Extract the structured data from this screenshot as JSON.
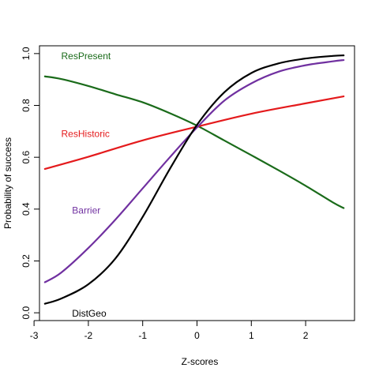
{
  "chart_data": {
    "type": "line",
    "xlabel": "Z-scores",
    "ylabel": "Probability of success",
    "xlim": [
      -2.9,
      2.9
    ],
    "ylim": [
      -0.03,
      1.03
    ],
    "x_ticks": [
      -3,
      -2,
      -1,
      0,
      1,
      2
    ],
    "x_tick_labels": [
      "-3",
      "-2",
      "-1",
      "0",
      "1",
      "2"
    ],
    "y_ticks": [
      0.0,
      0.2,
      0.4,
      0.6,
      0.8,
      1.0
    ],
    "y_tick_labels": [
      "0.0",
      "0.2",
      "0.4",
      "0.6",
      "0.8",
      "1.0"
    ],
    "grid": false,
    "legend": "none",
    "series": [
      {
        "name": "ResPresent",
        "color": "#1a6b1a",
        "x": [
          -2.8,
          -2.5,
          -2.0,
          -1.5,
          -1.0,
          -0.5,
          0.0,
          0.5,
          1.0,
          1.5,
          2.0,
          2.5,
          2.7
        ],
        "values": [
          0.912,
          0.902,
          0.875,
          0.843,
          0.812,
          0.77,
          0.722,
          0.665,
          0.608,
          0.55,
          0.49,
          0.426,
          0.404
        ]
      },
      {
        "name": "ResHistoric",
        "color": "#e41a1c",
        "x": [
          -2.8,
          -2.0,
          -1.0,
          0.0,
          1.0,
          2.0,
          2.7
        ],
        "values": [
          0.555,
          0.602,
          0.665,
          0.718,
          0.768,
          0.808,
          0.835
        ]
      },
      {
        "name": "Barrier",
        "color": "#7030a0",
        "x": [
          -2.8,
          -2.5,
          -2.0,
          -1.5,
          -1.0,
          -0.5,
          0.0,
          0.5,
          1.0,
          1.5,
          2.0,
          2.5,
          2.7
        ],
        "values": [
          0.118,
          0.155,
          0.25,
          0.36,
          0.48,
          0.6,
          0.715,
          0.818,
          0.885,
          0.93,
          0.955,
          0.97,
          0.975
        ]
      },
      {
        "name": "DistGeo",
        "color": "#000000",
        "x": [
          -2.8,
          -2.5,
          -2.0,
          -1.5,
          -1.0,
          -0.5,
          0.0,
          0.5,
          1.0,
          1.5,
          2.0,
          2.5,
          2.7
        ],
        "values": [
          0.035,
          0.055,
          0.11,
          0.21,
          0.37,
          0.555,
          0.725,
          0.85,
          0.925,
          0.962,
          0.981,
          0.991,
          0.993
        ]
      }
    ],
    "annotations": [
      {
        "text": "ResPresent",
        "series": "ResPresent",
        "x": -2.5,
        "y": 0.99
      },
      {
        "text": "ResHistoric",
        "series": "ResHistoric",
        "x": -2.5,
        "y": 0.69
      },
      {
        "text": "Barrier",
        "series": "Barrier",
        "x": -2.3,
        "y": 0.395
      },
      {
        "text": "DistGeo",
        "series": "DistGeo",
        "x": -2.3,
        "y": -0.003
      }
    ]
  }
}
